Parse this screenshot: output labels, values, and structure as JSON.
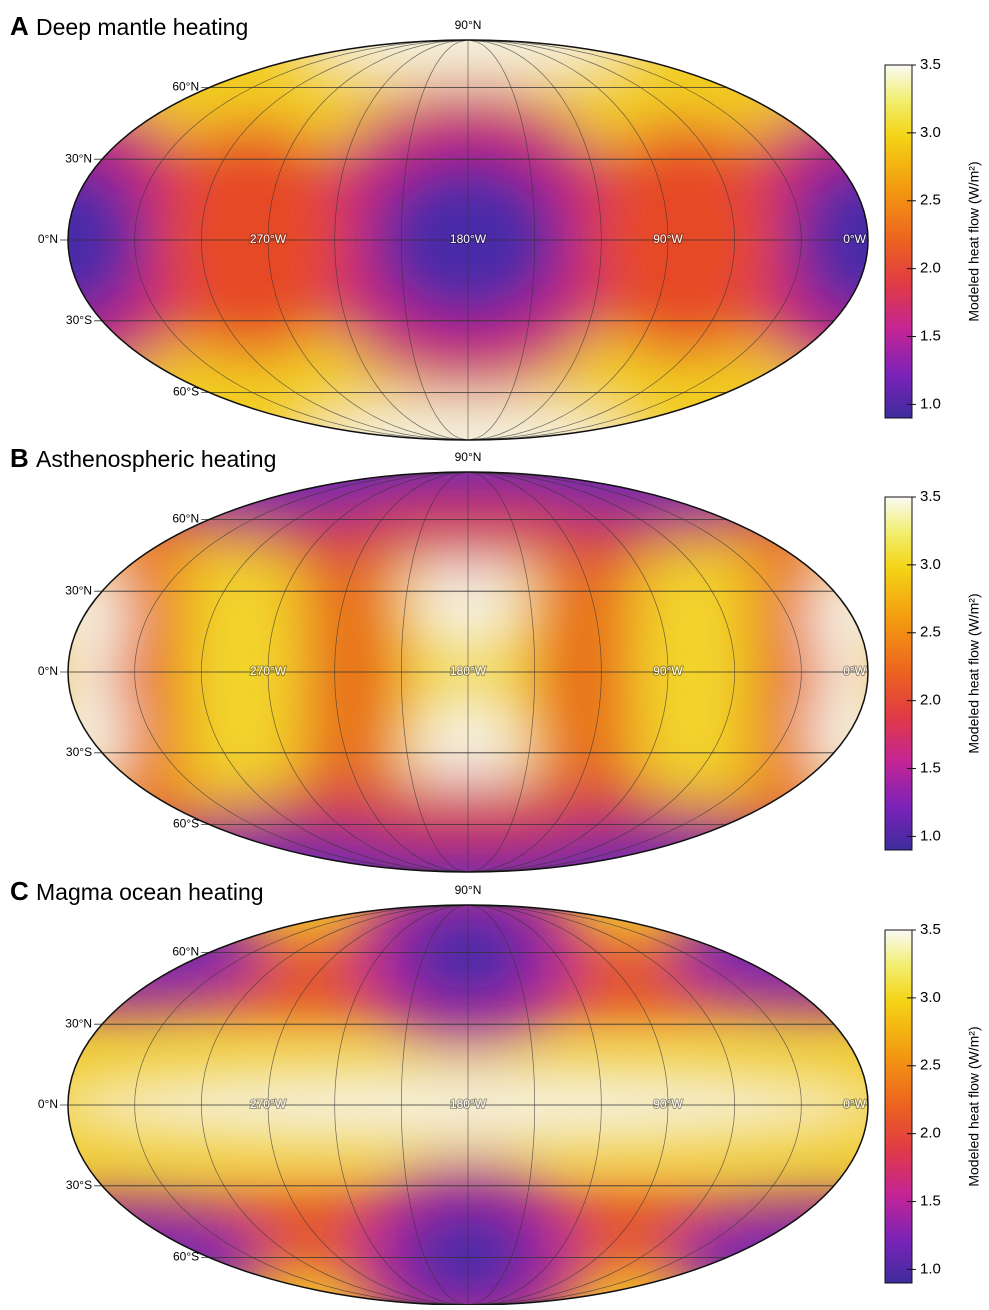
{
  "panels": [
    {
      "letter": "A",
      "title": "Deep mantle heating"
    },
    {
      "letter": "B",
      "title": "Asthenospheric heating"
    },
    {
      "letter": "C",
      "title": "Magma ocean heating"
    }
  ],
  "lat_labels": [
    "90°N",
    "60°N",
    "30°N",
    "0°N",
    "30°S",
    "60°S"
  ],
  "lon_labels": [
    "270°W",
    "180°W",
    "90°W",
    "0°W"
  ],
  "colorbar": {
    "label": "Modeled heat flow (W/m²)",
    "lim": [
      0.9,
      3.5
    ],
    "ticks": [
      {
        "value": 1,
        "label": "1.0"
      },
      1.5,
      {
        "value": 2,
        "label": "2.0"
      },
      2.5,
      {
        "value": 3,
        "label": "3.0"
      },
      3.5
    ]
  }
}
